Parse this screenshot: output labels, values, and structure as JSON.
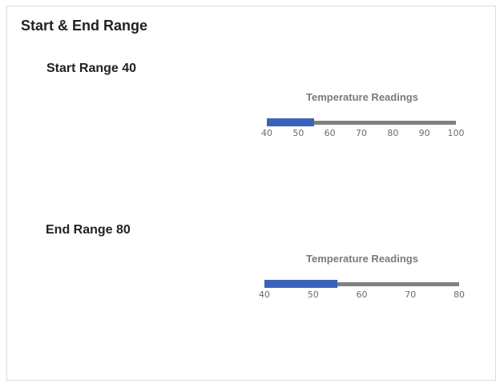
{
  "header": {
    "title": "Start & End Range"
  },
  "sections": [
    {
      "label": "Start Range 40"
    },
    {
      "label": "End Range 80"
    }
  ],
  "chart_data": [
    {
      "type": "bullet",
      "title": "Temperature Readings",
      "range": [
        40,
        100
      ],
      "ticks": [
        40,
        50,
        60,
        70,
        80,
        90,
        100
      ],
      "value": 55,
      "colors": {
        "bar": "#3a62b8",
        "track": "#808080"
      }
    },
    {
      "type": "bullet",
      "title": "Temperature Readings",
      "range": [
        40,
        80
      ],
      "ticks": [
        40,
        50,
        60,
        70,
        80
      ],
      "value": 55,
      "colors": {
        "bar": "#3a62b8",
        "track": "#808080"
      }
    }
  ]
}
